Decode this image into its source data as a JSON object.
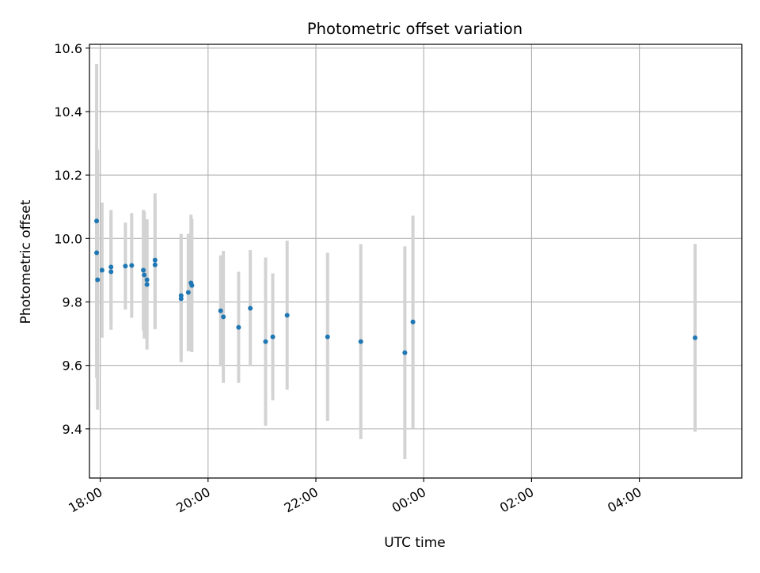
{
  "chart_data": {
    "type": "scatter",
    "title": "Photometric offset variation",
    "xlabel": "UTC time",
    "ylabel": "Photometric offset",
    "x_format": "HH:MM",
    "xlim": [
      "17:48",
      "05:54"
    ],
    "ylim": [
      9.245,
      10.612
    ],
    "xticks": [
      "18:00",
      "20:00",
      "22:00",
      "00:00",
      "02:00",
      "04:00"
    ],
    "yticks": [
      9.4,
      9.6,
      9.8,
      10.0,
      10.2,
      10.4,
      10.6
    ],
    "grid": true,
    "legend": "none",
    "marker_color": "#1f77b4",
    "errorbar_color": "#d3d3d3",
    "points": [
      {
        "x": "17:56",
        "y": 10.055,
        "err": 0.495
      },
      {
        "x": "17:56",
        "y": 9.955,
        "err": 0.325
      },
      {
        "x": "17:57",
        "y": 9.87,
        "err": 0.41
      },
      {
        "x": "18:02",
        "y": 9.9,
        "err": 0.213
      },
      {
        "x": "18:12",
        "y": 9.91,
        "err": 0.18
      },
      {
        "x": "18:12",
        "y": 9.895,
        "err": 0.183
      },
      {
        "x": "18:28",
        "y": 9.913,
        "err": 0.137
      },
      {
        "x": "18:35",
        "y": 9.915,
        "err": 0.165
      },
      {
        "x": "18:48",
        "y": 9.9,
        "err": 0.19
      },
      {
        "x": "18:49",
        "y": 9.885,
        "err": 0.2
      },
      {
        "x": "18:52",
        "y": 9.87,
        "err": 0.19
      },
      {
        "x": "18:52",
        "y": 9.855,
        "err": 0.205
      },
      {
        "x": "19:01",
        "y": 9.932,
        "err": 0.21
      },
      {
        "x": "19:01",
        "y": 9.917,
        "err": 0.203
      },
      {
        "x": "19:30",
        "y": 9.82,
        "err": 0.195
      },
      {
        "x": "19:30",
        "y": 9.81,
        "err": 0.2
      },
      {
        "x": "19:38",
        "y": 9.83,
        "err": 0.185
      },
      {
        "x": "19:41",
        "y": 9.86,
        "err": 0.215
      },
      {
        "x": "19:42",
        "y": 9.852,
        "err": 0.21
      },
      {
        "x": "20:14",
        "y": 9.772,
        "err": 0.175
      },
      {
        "x": "20:17",
        "y": 9.753,
        "err": 0.208
      },
      {
        "x": "20:34",
        "y": 9.72,
        "err": 0.175
      },
      {
        "x": "20:47",
        "y": 9.78,
        "err": 0.183
      },
      {
        "x": "21:04",
        "y": 9.675,
        "err": 0.265
      },
      {
        "x": "21:12",
        "y": 9.69,
        "err": 0.2
      },
      {
        "x": "21:28",
        "y": 9.758,
        "err": 0.235
      },
      {
        "x": "22:13",
        "y": 9.69,
        "err": 0.265
      },
      {
        "x": "22:50",
        "y": 9.675,
        "err": 0.307
      },
      {
        "x": "23:39",
        "y": 9.64,
        "err": 0.335
      },
      {
        "x": "23:48",
        "y": 9.737,
        "err": 0.335
      },
      {
        "x": "05:02",
        "y": 9.687,
        "err": 0.296
      }
    ]
  }
}
